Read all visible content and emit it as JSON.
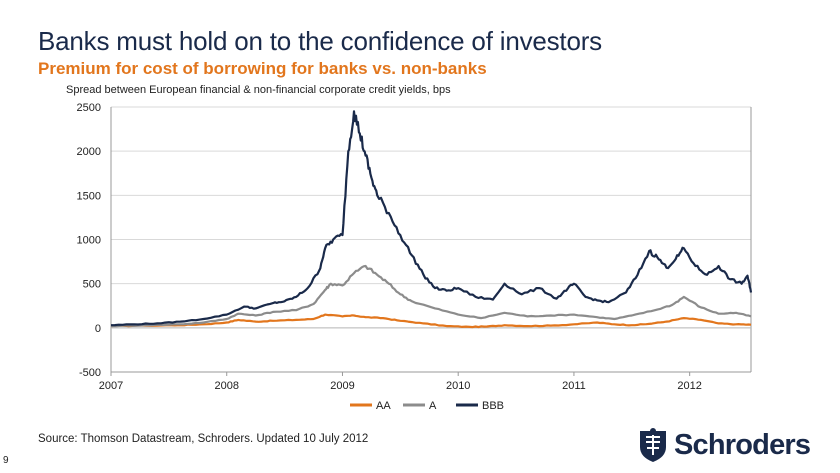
{
  "slide": {
    "title": "Banks must hold on to the confidence of investors",
    "subtitle": "Premium for cost of borrowing for banks vs. non-banks",
    "source": "Source: Thomson Datastream, Schroders. Updated 10 July 2012",
    "page_number": "9",
    "logo_text": "Schroders"
  },
  "colors": {
    "AA": "#e2761d",
    "A": "#8c8c8c",
    "BBB": "#1a2a4a"
  },
  "chart_data": {
    "type": "line",
    "title": "Spread between European financial & non-financial corporate credit yields, bps",
    "xlabel": "",
    "ylabel": "",
    "xlim": [
      2007,
      2012.53
    ],
    "ylim": [
      -500,
      2500
    ],
    "yticks": [
      2500,
      2000,
      1500,
      1000,
      500,
      0,
      -500
    ],
    "xticks": [
      "2007",
      "2008",
      "2009",
      "2010",
      "2011",
      "2012"
    ],
    "legend": "bottom-center",
    "series": [
      {
        "name": "AA",
        "x": [
          2007,
          2007.3,
          2007.6,
          2007.8,
          2008,
          2008.1,
          2008.25,
          2008.4,
          2008.6,
          2008.75,
          2008.85,
          2009,
          2009.1,
          2009.2,
          2009.35,
          2009.5,
          2009.7,
          2009.9,
          2010.1,
          2010.25,
          2010.4,
          2010.6,
          2010.8,
          2011,
          2011.2,
          2011.35,
          2011.5,
          2011.65,
          2011.8,
          2011.95,
          2012.1,
          2012.25,
          2012.4,
          2012.53
        ],
        "values": [
          20,
          25,
          30,
          40,
          60,
          90,
          70,
          80,
          90,
          100,
          150,
          130,
          140,
          120,
          110,
          80,
          50,
          20,
          10,
          15,
          30,
          20,
          25,
          40,
          60,
          40,
          30,
          45,
          70,
          110,
          90,
          50,
          40,
          35
        ]
      },
      {
        "name": "A",
        "x": [
          2007,
          2007.3,
          2007.6,
          2007.8,
          2008,
          2008.1,
          2008.25,
          2008.4,
          2008.6,
          2008.75,
          2008.85,
          2008.9,
          2009,
          2009.1,
          2009.2,
          2009.3,
          2009.4,
          2009.5,
          2009.6,
          2009.8,
          2010,
          2010.2,
          2010.4,
          2010.6,
          2010.8,
          2011,
          2011.2,
          2011.35,
          2011.5,
          2011.7,
          2011.85,
          2011.95,
          2012.1,
          2012.25,
          2012.4,
          2012.53
        ],
        "values": [
          20,
          30,
          40,
          60,
          100,
          160,
          140,
          180,
          200,
          270,
          430,
          500,
          480,
          620,
          700,
          600,
          500,
          380,
          300,
          220,
          150,
          110,
          170,
          130,
          140,
          150,
          120,
          100,
          140,
          200,
          260,
          350,
          230,
          160,
          170,
          130
        ]
      },
      {
        "name": "BBB",
        "x": [
          2007,
          2007.2,
          2007.4,
          2007.6,
          2007.8,
          2008,
          2008.15,
          2008.25,
          2008.4,
          2008.5,
          2008.6,
          2008.7,
          2008.8,
          2008.85,
          2008.92,
          2009,
          2009.05,
          2009.1,
          2009.15,
          2009.2,
          2009.25,
          2009.3,
          2009.4,
          2009.5,
          2009.6,
          2009.7,
          2009.8,
          2009.9,
          2010,
          2010.15,
          2010.3,
          2010.4,
          2010.55,
          2010.7,
          2010.85,
          2010.95,
          2011,
          2011.1,
          2011.2,
          2011.3,
          2011.45,
          2011.55,
          2011.65,
          2011.72,
          2011.8,
          2011.88,
          2011.95,
          2012.05,
          2012.15,
          2012.25,
          2012.35,
          2012.45,
          2012.5,
          2012.53
        ],
        "values": [
          30,
          40,
          50,
          70,
          100,
          150,
          240,
          220,
          280,
          300,
          350,
          450,
          650,
          900,
          1000,
          1050,
          2000,
          2450,
          2200,
          1950,
          1700,
          1500,
          1300,
          1050,
          820,
          600,
          450,
          420,
          450,
          350,
          320,
          500,
          380,
          450,
          330,
          450,
          500,
          350,
          310,
          290,
          400,
          600,
          870,
          800,
          680,
          780,
          900,
          700,
          600,
          700,
          550,
          500,
          590,
          400
        ]
      }
    ]
  }
}
